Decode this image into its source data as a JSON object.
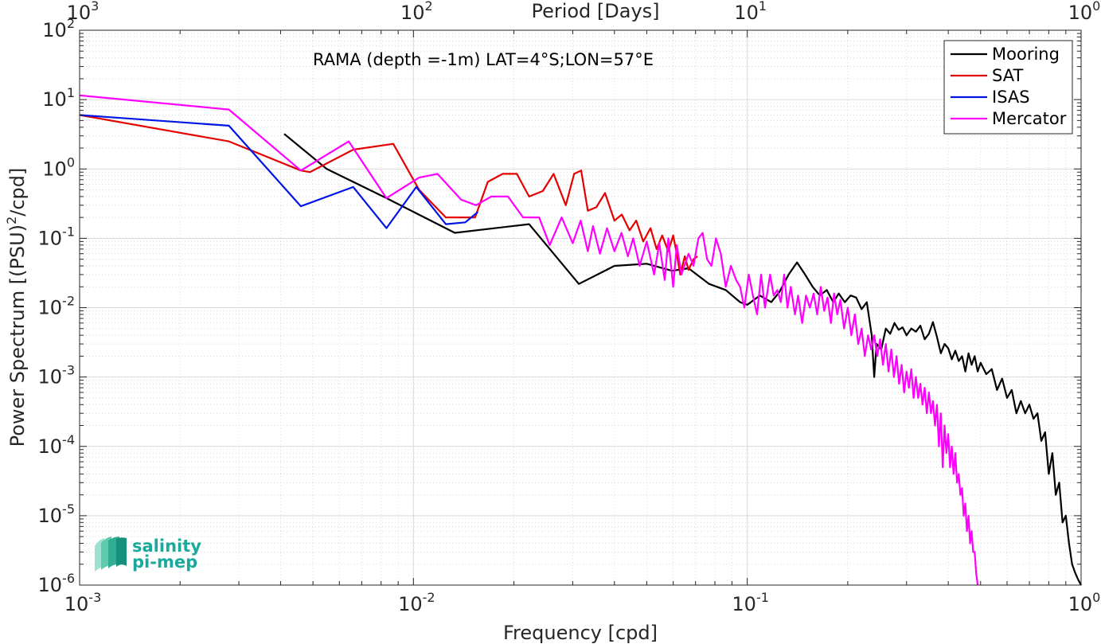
{
  "colors": {
    "Mooring": "#000000",
    "SAT": "#e60000",
    "ISAS": "#0014e6",
    "Mercator": "#ff00ff",
    "logo": "#1aa99a"
  },
  "logo": {
    "line1": "salinity",
    "line2": "pi-mep"
  },
  "chart_data": {
    "type": "line",
    "title": "",
    "annotation": "RAMA (depth =-1m) LAT=4°S;LON=57°E",
    "xlabel": "Frequency [cpd]",
    "ylabel_main": "Power Spectrum [(PSU)",
    "ylabel_sup": "2",
    "ylabel_tail": "/cpd]",
    "x2label": "Period [Days]",
    "xscale": "log",
    "yscale": "log",
    "xlim": [
      0.001,
      1
    ],
    "ylim": [
      1e-06,
      100
    ],
    "grid": true,
    "legend_position": "top-right",
    "x_ticks": [
      {
        "value": 0.001,
        "base": "10",
        "exp": "-3"
      },
      {
        "value": 0.01,
        "base": "10",
        "exp": "-2"
      },
      {
        "value": 0.1,
        "base": "10",
        "exp": "-1"
      },
      {
        "value": 1,
        "base": "10",
        "exp": "0"
      }
    ],
    "y_ticks": [
      {
        "value": 1e-06,
        "base": "10",
        "exp": "-6"
      },
      {
        "value": 1e-05,
        "base": "10",
        "exp": "-5"
      },
      {
        "value": 0.0001,
        "base": "10",
        "exp": "-4"
      },
      {
        "value": 0.001,
        "base": "10",
        "exp": "-3"
      },
      {
        "value": 0.01,
        "base": "10",
        "exp": "-2"
      },
      {
        "value": 0.1,
        "base": "10",
        "exp": "-1"
      },
      {
        "value": 1,
        "base": "10",
        "exp": "0"
      },
      {
        "value": 10,
        "base": "10",
        "exp": "1"
      },
      {
        "value": 100,
        "base": "10",
        "exp": "2"
      }
    ],
    "x2_ticks": [
      {
        "period": 1000,
        "base": "10",
        "exp": "3"
      },
      {
        "period": 100,
        "base": "10",
        "exp": "2"
      },
      {
        "period": 10,
        "base": "10",
        "exp": "1"
      },
      {
        "period": 1,
        "base": "10",
        "exp": "0"
      }
    ],
    "series": [
      {
        "name": "Mooring",
        "points": [
          [
            0.0041,
            3.2
          ],
          [
            0.0055,
            1.0
          ],
          [
            0.0083,
            0.38
          ],
          [
            0.0133,
            0.12
          ],
          [
            0.0222,
            0.16
          ],
          [
            0.0313,
            0.022
          ],
          [
            0.04,
            0.04
          ],
          [
            0.05,
            0.043
          ],
          [
            0.0595,
            0.034
          ],
          [
            0.0667,
            0.037
          ],
          [
            0.0769,
            0.022
          ],
          [
            0.0862,
            0.018
          ],
          [
            0.0952,
            0.012
          ],
          [
            0.1,
            0.011
          ],
          [
            0.109,
            0.015
          ],
          [
            0.118,
            0.012
          ],
          [
            0.125,
            0.017
          ],
          [
            0.133,
            0.03
          ],
          [
            0.141,
            0.045
          ],
          [
            0.149,
            0.03
          ],
          [
            0.157,
            0.02
          ],
          [
            0.165,
            0.015
          ],
          [
            0.173,
            0.018
          ],
          [
            0.181,
            0.012
          ],
          [
            0.188,
            0.016
          ],
          [
            0.196,
            0.012
          ],
          [
            0.204,
            0.015
          ],
          [
            0.212,
            0.014
          ],
          [
            0.22,
            0.0095
          ],
          [
            0.228,
            0.012
          ],
          [
            0.236,
            0.004
          ],
          [
            0.24,
            0.001
          ],
          [
            0.244,
            0.003
          ],
          [
            0.252,
            0.0025
          ],
          [
            0.26,
            0.005
          ],
          [
            0.268,
            0.0042
          ],
          [
            0.276,
            0.006
          ],
          [
            0.284,
            0.0048
          ],
          [
            0.292,
            0.0052
          ],
          [
            0.3,
            0.004
          ],
          [
            0.31,
            0.005
          ],
          [
            0.32,
            0.0045
          ],
          [
            0.33,
            0.0055
          ],
          [
            0.34,
            0.0035
          ],
          [
            0.35,
            0.0042
          ],
          [
            0.36,
            0.0062
          ],
          [
            0.37,
            0.0038
          ],
          [
            0.38,
            0.0022
          ],
          [
            0.39,
            0.003
          ],
          [
            0.4,
            0.0026
          ],
          [
            0.41,
            0.0018
          ],
          [
            0.42,
            0.0024
          ],
          [
            0.43,
            0.0017
          ],
          [
            0.44,
            0.002
          ],
          [
            0.45,
            0.0012
          ],
          [
            0.46,
            0.0022
          ],
          [
            0.47,
            0.0015
          ],
          [
            0.48,
            0.002
          ],
          [
            0.49,
            0.0012
          ],
          [
            0.5,
            0.0016
          ],
          [
            0.52,
            0.0011
          ],
          [
            0.54,
            0.0013
          ],
          [
            0.56,
            0.00065
          ],
          [
            0.58,
            0.00095
          ],
          [
            0.6,
            0.0005
          ],
          [
            0.62,
            0.00065
          ],
          [
            0.64,
            0.0003
          ],
          [
            0.66,
            0.00045
          ],
          [
            0.68,
            0.0003
          ],
          [
            0.7,
            0.0004
          ],
          [
            0.72,
            0.00025
          ],
          [
            0.74,
            0.0003
          ],
          [
            0.76,
            0.00012
          ],
          [
            0.78,
            0.00016
          ],
          [
            0.8,
            4e-05
          ],
          [
            0.82,
            8e-05
          ],
          [
            0.84,
            2e-05
          ],
          [
            0.86,
            3e-05
          ],
          [
            0.88,
            8e-06
          ],
          [
            0.9,
            1e-05
          ],
          [
            0.92,
            4e-06
          ],
          [
            0.94,
            2e-06
          ],
          [
            0.96,
            1.5e-06
          ],
          [
            0.98,
            1.2e-06
          ],
          [
            1.0,
            1e-06
          ]
        ]
      },
      {
        "name": "SAT",
        "points": [
          [
            0.001,
            6.0
          ],
          [
            0.0028,
            2.5
          ],
          [
            0.0046,
            0.95
          ],
          [
            0.0049,
            0.9
          ],
          [
            0.0066,
            1.9
          ],
          [
            0.0087,
            2.3
          ],
          [
            0.0104,
            0.5
          ],
          [
            0.0125,
            0.2
          ],
          [
            0.0153,
            0.2
          ],
          [
            0.0167,
            0.65
          ],
          [
            0.0185,
            0.85
          ],
          [
            0.0204,
            0.85
          ],
          [
            0.0222,
            0.4
          ],
          [
            0.0244,
            0.48
          ],
          [
            0.0263,
            0.85
          ],
          [
            0.0286,
            0.3
          ],
          [
            0.0303,
            0.85
          ],
          [
            0.0318,
            0.95
          ],
          [
            0.0333,
            0.25
          ],
          [
            0.0353,
            0.28
          ],
          [
            0.0375,
            0.45
          ],
          [
            0.04,
            0.18
          ],
          [
            0.0421,
            0.22
          ],
          [
            0.0444,
            0.13
          ],
          [
            0.0465,
            0.18
          ],
          [
            0.0488,
            0.09
          ],
          [
            0.0513,
            0.14
          ],
          [
            0.0535,
            0.07
          ],
          [
            0.0556,
            0.11
          ],
          [
            0.058,
            0.065
          ],
          [
            0.06,
            0.11
          ],
          [
            0.0615,
            0.06
          ],
          [
            0.063,
            0.03
          ],
          [
            0.065,
            0.055
          ],
          [
            0.0667,
            0.035
          ],
          [
            0.069,
            0.05
          ],
          [
            0.071,
            0.055
          ]
        ]
      },
      {
        "name": "ISAS",
        "points": [
          [
            0.001,
            6.0
          ],
          [
            0.0028,
            4.2
          ],
          [
            0.0046,
            0.29
          ],
          [
            0.0066,
            0.55
          ],
          [
            0.0083,
            0.14
          ],
          [
            0.0102,
            0.55
          ],
          [
            0.0125,
            0.16
          ],
          [
            0.0143,
            0.17
          ],
          [
            0.0156,
            0.24
          ]
        ]
      },
      {
        "name": "Mercator",
        "points": [
          [
            0.001,
            11.5
          ],
          [
            0.0028,
            7.2
          ],
          [
            0.0046,
            0.95
          ],
          [
            0.0064,
            2.5
          ],
          [
            0.0083,
            0.38
          ],
          [
            0.0104,
            0.75
          ],
          [
            0.0118,
            0.85
          ],
          [
            0.0139,
            0.36
          ],
          [
            0.0154,
            0.3
          ],
          [
            0.0171,
            0.4
          ],
          [
            0.0192,
            0.4
          ],
          [
            0.0213,
            0.2
          ],
          [
            0.0238,
            0.2
          ],
          [
            0.0256,
            0.08
          ],
          [
            0.0278,
            0.2
          ],
          [
            0.03,
            0.085
          ],
          [
            0.0317,
            0.18
          ],
          [
            0.0333,
            0.065
          ],
          [
            0.0345,
            0.15
          ],
          [
            0.0362,
            0.06
          ],
          [
            0.038,
            0.14
          ],
          [
            0.04,
            0.065
          ],
          [
            0.042,
            0.12
          ],
          [
            0.0439,
            0.055
          ],
          [
            0.0455,
            0.1
          ],
          [
            0.0476,
            0.04
          ],
          [
            0.05,
            0.09
          ],
          [
            0.0526,
            0.03
          ],
          [
            0.0545,
            0.085
          ],
          [
            0.0566,
            0.025
          ],
          [
            0.058,
            0.1
          ],
          [
            0.06,
            0.02
          ],
          [
            0.0615,
            0.08
          ],
          [
            0.0635,
            0.03
          ],
          [
            0.0667,
            0.06
          ],
          [
            0.069,
            0.04
          ],
          [
            0.0714,
            0.1
          ],
          [
            0.0735,
            0.12
          ],
          [
            0.0758,
            0.05
          ],
          [
            0.0781,
            0.04
          ],
          [
            0.0806,
            0.1
          ],
          [
            0.0833,
            0.06
          ],
          [
            0.0862,
            0.02
          ],
          [
            0.0893,
            0.04
          ],
          [
            0.0926,
            0.025
          ],
          [
            0.0952,
            0.02
          ],
          [
            0.098,
            0.01
          ],
          [
            0.101,
            0.03
          ],
          [
            0.104,
            0.015
          ],
          [
            0.107,
            0.008
          ],
          [
            0.11,
            0.03
          ],
          [
            0.113,
            0.01
          ],
          [
            0.117,
            0.03
          ],
          [
            0.12,
            0.015
          ],
          [
            0.123,
            0.018
          ],
          [
            0.126,
            0.012
          ],
          [
            0.129,
            0.03
          ],
          [
            0.132,
            0.01
          ],
          [
            0.135,
            0.02
          ],
          [
            0.139,
            0.008
          ],
          [
            0.142,
            0.015
          ],
          [
            0.146,
            0.006
          ],
          [
            0.15,
            0.015
          ],
          [
            0.154,
            0.01
          ],
          [
            0.158,
            0.016
          ],
          [
            0.162,
            0.008
          ],
          [
            0.166,
            0.02
          ],
          [
            0.17,
            0.009
          ],
          [
            0.174,
            0.014
          ],
          [
            0.178,
            0.006
          ],
          [
            0.182,
            0.016
          ],
          [
            0.186,
            0.008
          ],
          [
            0.19,
            0.013
          ],
          [
            0.195,
            0.005
          ],
          [
            0.2,
            0.01
          ],
          [
            0.205,
            0.004
          ],
          [
            0.21,
            0.008
          ],
          [
            0.215,
            0.003
          ],
          [
            0.22,
            0.005
          ],
          [
            0.225,
            0.002
          ],
          [
            0.23,
            0.004
          ],
          [
            0.235,
            0.0025
          ],
          [
            0.24,
            0.004
          ],
          [
            0.245,
            0.002
          ],
          [
            0.25,
            0.0035
          ],
          [
            0.255,
            0.0015
          ],
          [
            0.26,
            0.003
          ],
          [
            0.265,
            0.0012
          ],
          [
            0.27,
            0.0025
          ],
          [
            0.275,
            0.001
          ],
          [
            0.28,
            0.002
          ],
          [
            0.285,
            0.0008
          ],
          [
            0.29,
            0.0015
          ],
          [
            0.295,
            0.0006
          ],
          [
            0.3,
            0.0012
          ],
          [
            0.305,
            0.0007
          ],
          [
            0.31,
            0.0013
          ],
          [
            0.315,
            0.0005
          ],
          [
            0.32,
            0.001
          ],
          [
            0.325,
            0.0005
          ],
          [
            0.33,
            0.0008
          ],
          [
            0.335,
            0.0004
          ],
          [
            0.34,
            0.0007
          ],
          [
            0.345,
            0.0003
          ],
          [
            0.35,
            0.0006
          ],
          [
            0.355,
            0.0003
          ],
          [
            0.36,
            0.00045
          ],
          [
            0.365,
            0.0002
          ],
          [
            0.37,
            0.0004
          ],
          [
            0.375,
            0.0001
          ],
          [
            0.38,
            0.0003
          ],
          [
            0.385,
            5e-05
          ],
          [
            0.39,
            0.0002
          ],
          [
            0.395,
            8e-05
          ],
          [
            0.4,
            0.00015
          ],
          [
            0.405,
            5e-05
          ],
          [
            0.41,
            0.0001
          ],
          [
            0.415,
            4e-05
          ],
          [
            0.42,
            8e-05
          ],
          [
            0.425,
            3e-05
          ],
          [
            0.43,
            4e-05
          ],
          [
            0.435,
            2e-05
          ],
          [
            0.44,
            2.5e-05
          ],
          [
            0.445,
            1e-05
          ],
          [
            0.45,
            1.5e-05
          ],
          [
            0.455,
            6e-06
          ],
          [
            0.46,
            1e-05
          ],
          [
            0.465,
            4e-06
          ],
          [
            0.47,
            6e-06
          ],
          [
            0.475,
            3e-06
          ],
          [
            0.48,
            3e-06
          ],
          [
            0.485,
            1.5e-06
          ],
          [
            0.49,
            1e-06
          ]
        ]
      }
    ]
  }
}
